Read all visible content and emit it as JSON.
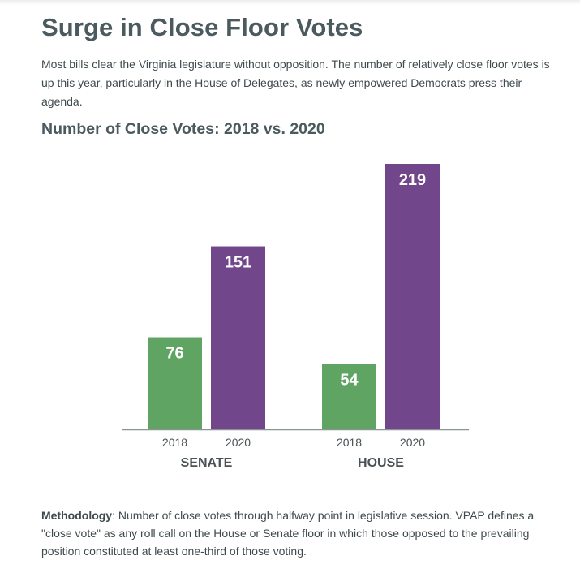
{
  "title": "Surge in Close Floor Votes",
  "intro": "Most bills clear the Virginia legislature without opposition. The number of relatively close floor votes is up this year, particularly in the House of Delegates, as newly empowered Democrats press their agenda.",
  "methodology": {
    "label": "Methodology",
    "text": ": Number of close votes through halfway point in legislative session. VPAP defines a \"close vote\" as any roll call on the House or Senate floor in which those opposed to the prevailing position constituted at least one-third of those voting."
  },
  "chart_data": {
    "type": "bar",
    "title": "Number of Close Votes: 2018 vs. 2020",
    "groups": [
      "SENATE",
      "HOUSE"
    ],
    "series": [
      {
        "name": "2018",
        "values": [
          76,
          54
        ],
        "color": "#5fa462"
      },
      {
        "name": "2020",
        "values": [
          151,
          219
        ],
        "color": "#71468a"
      }
    ],
    "ylim": [
      0,
      219
    ],
    "grid": false,
    "legend": "none"
  }
}
